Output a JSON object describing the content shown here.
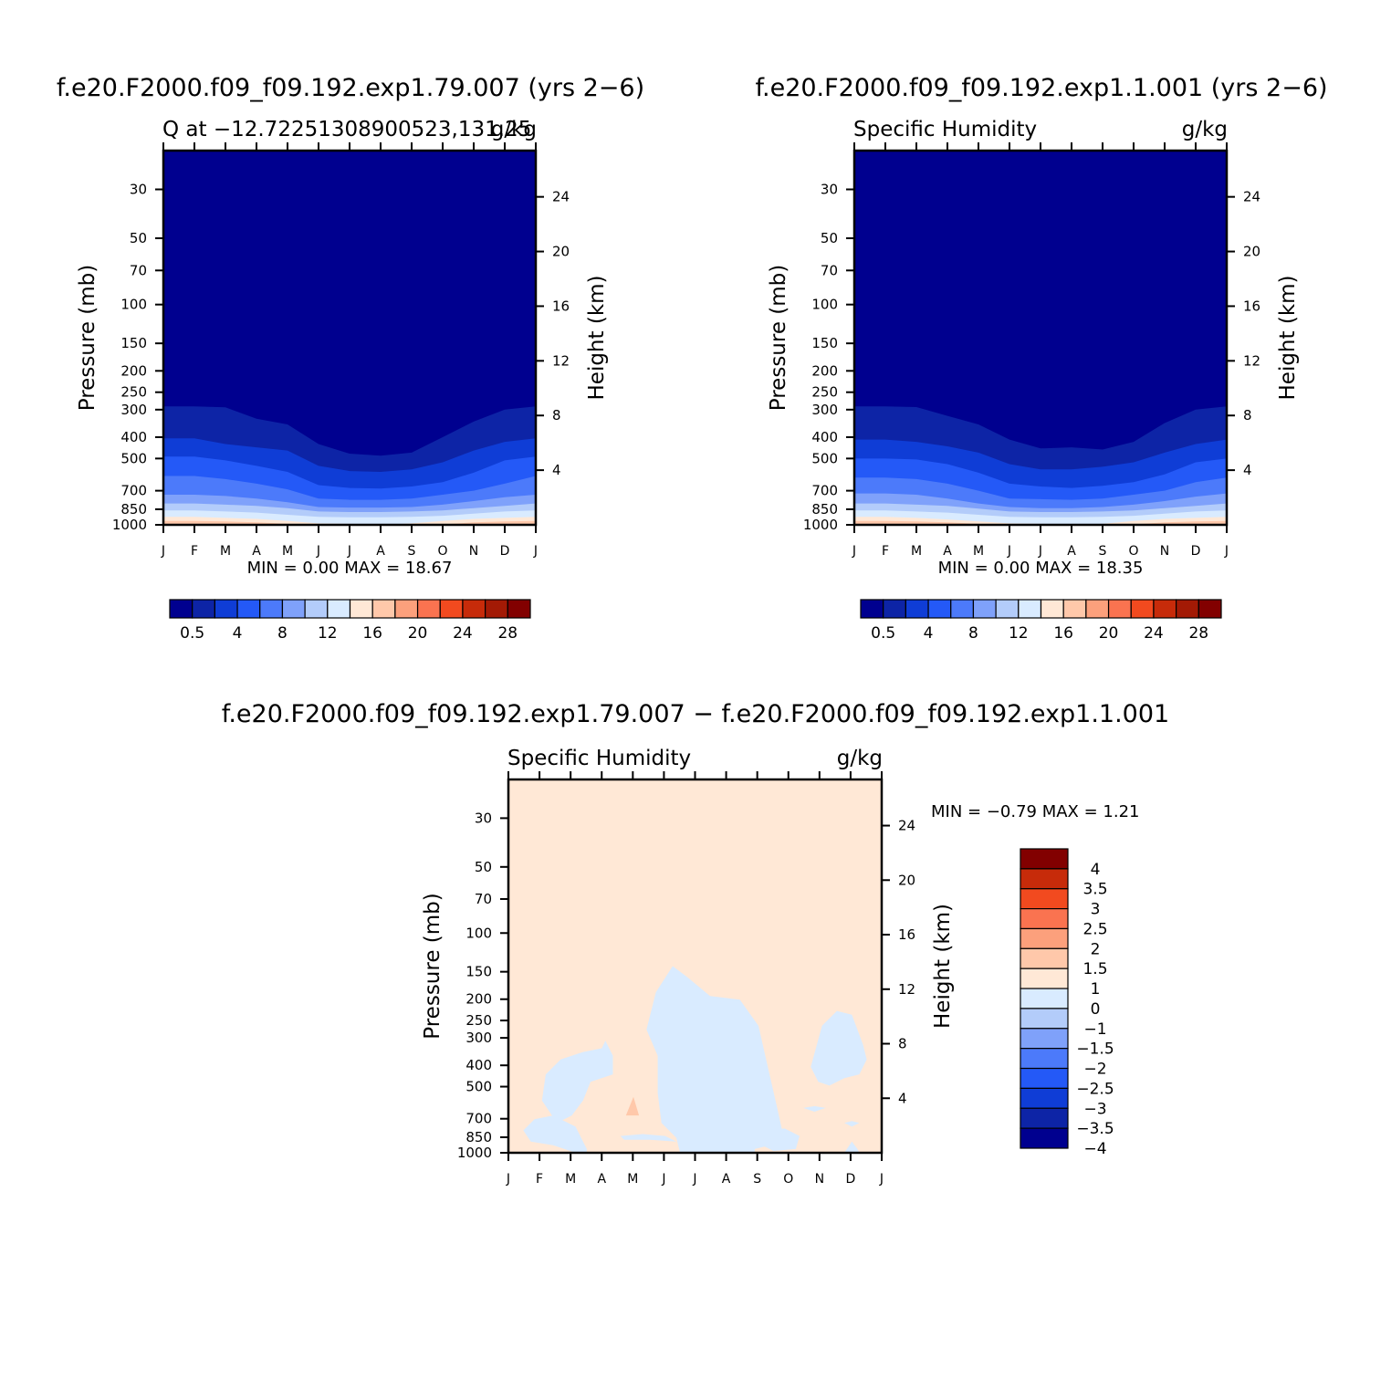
{
  "panels": [
    {
      "id": "ctrl",
      "title": "f.e20.F2000.f09_f09.192.exp1.79.007 (yrs 2−6)",
      "left_label": "Q at −12.72251308900523,131.25",
      "right_label": "g/kg",
      "minmax": "MIN =    0.00  MAX =   18.67"
    },
    {
      "id": "test",
      "title": "f.e20.F2000.f09_f09.192.exp1.1.001 (yrs 2−6)",
      "left_label": "Specific Humidity",
      "right_label": "g/kg",
      "minmax": "MIN =    0.00  MAX =   18.35"
    },
    {
      "id": "diff",
      "title": "f.e20.F2000.f09_f09.192.exp1.79.007 − f.e20.F2000.f09_f09.192.exp1.1.001",
      "left_label": "Specific Humidity",
      "right_label": "g/kg",
      "minmax": "MIN =   −0.79  MAX =    1.21"
    }
  ],
  "chart_data": [
    {
      "type": "heatmap",
      "title": "f.e20.F2000.f09_f09.192.exp1.79.007 (yrs 2−6)",
      "x_categories": [
        "J",
        "F",
        "M",
        "A",
        "M",
        "J",
        "J",
        "A",
        "S",
        "O",
        "N",
        "D",
        "J"
      ],
      "y_ticks": [
        "30",
        "50",
        "70",
        "100",
        "150",
        "200",
        "250",
        "300",
        "400",
        "500",
        "700",
        "850",
        "1000"
      ],
      "ylabel": "Pressure (mb)",
      "y2_ticks": [
        "24",
        "20",
        "16",
        "12",
        "8",
        "4"
      ],
      "y2label": "Height (km)",
      "units": "g/kg",
      "min": 0.0,
      "max": 18.67,
      "contour_levels_labels": [
        "0.5",
        "4",
        "8",
        "12",
        "16",
        "20",
        "24",
        "28"
      ],
      "colors": [
        "#00008F",
        "#0D24A6",
        "#0F3DD6",
        "#2459F7",
        "#4C7AFA",
        "#7FA1FA",
        "#B3CCFA",
        "#D9EBFF",
        "#FFE8D6",
        "#FFC8AA",
        "#FCA07C",
        "#FA7350",
        "#F24A1F",
        "#C72B0A",
        "#A31A05",
        "#820000"
      ],
      "boundaries_level1_hPa": [
        290,
        290,
        293,
        330,
        350,
        430,
        475,
        485,
        470,
        400,
        340,
        300,
        290
      ],
      "boundaries_level2_hPa": [
        405,
        405,
        430,
        445,
        460,
        540,
        570,
        575,
        560,
        520,
        460,
        420,
        405
      ],
      "boundaries_level3_hPa": [
        490,
        490,
        510,
        540,
        575,
        660,
        680,
        685,
        670,
        640,
        580,
        510,
        490
      ],
      "boundaries_level4_hPa": [
        600,
        600,
        620,
        650,
        690,
        760,
        770,
        770,
        760,
        730,
        700,
        650,
        600
      ],
      "boundaries_level5_hPa": [
        730,
        730,
        740,
        760,
        790,
        830,
        835,
        835,
        830,
        810,
        780,
        750,
        730
      ],
      "boundaries_level6_hPa": [
        800,
        800,
        810,
        820,
        840,
        870,
        875,
        875,
        870,
        860,
        840,
        820,
        800
      ],
      "boundaries_level7_hPa": [
        860,
        860,
        870,
        880,
        900,
        920,
        925,
        925,
        920,
        910,
        890,
        870,
        860
      ],
      "boundaries_level8_hPa": [
        920,
        920,
        930,
        940,
        960,
        985,
        990,
        1000,
        985,
        960,
        940,
        930,
        920
      ],
      "boundaries_level9_hPa": [
        960,
        960,
        965,
        975,
        990,
        1000,
        1000,
        1000,
        1000,
        995,
        975,
        965,
        960
      ]
    },
    {
      "type": "heatmap",
      "title": "f.e20.F2000.f09_f09.192.exp1.1.001 (yrs 2−6)",
      "x_categories": [
        "J",
        "F",
        "M",
        "A",
        "M",
        "J",
        "J",
        "A",
        "S",
        "O",
        "N",
        "D",
        "J"
      ],
      "y_ticks": [
        "30",
        "50",
        "70",
        "100",
        "150",
        "200",
        "250",
        "300",
        "400",
        "500",
        "700",
        "850",
        "1000"
      ],
      "ylabel": "Pressure (mb)",
      "y2_ticks": [
        "24",
        "20",
        "16",
        "12",
        "8",
        "4"
      ],
      "y2label": "Height (km)",
      "units": "g/kg",
      "min": 0.0,
      "max": 18.35,
      "contour_levels_labels": [
        "0.5",
        "4",
        "8",
        "12",
        "16",
        "20",
        "24",
        "28"
      ],
      "colors": [
        "#00008F",
        "#0D24A6",
        "#0F3DD6",
        "#2459F7",
        "#4C7AFA",
        "#7FA1FA",
        "#B3CCFA",
        "#D9EBFF",
        "#FFE8D6",
        "#FFC8AA",
        "#FCA07C",
        "#FA7350",
        "#F24A1F",
        "#C72B0A",
        "#A31A05",
        "#820000"
      ],
      "boundaries_level1_hPa": [
        290,
        290,
        292,
        320,
        350,
        410,
        450,
        445,
        455,
        420,
        345,
        300,
        290
      ],
      "boundaries_level2_hPa": [
        410,
        410,
        420,
        440,
        470,
        530,
        560,
        560,
        545,
        520,
        470,
        430,
        410
      ],
      "boundaries_level3_hPa": [
        500,
        500,
        505,
        530,
        580,
        650,
        670,
        680,
        665,
        640,
        590,
        520,
        500
      ],
      "boundaries_level4_hPa": [
        610,
        610,
        620,
        650,
        700,
        760,
        765,
        770,
        760,
        730,
        700,
        640,
        610
      ],
      "boundaries_level5_hPa": [
        720,
        720,
        730,
        760,
        800,
        830,
        840,
        840,
        830,
        810,
        780,
        745,
        720
      ],
      "boundaries_level6_hPa": [
        800,
        800,
        810,
        820,
        845,
        870,
        875,
        875,
        870,
        860,
        840,
        820,
        800
      ],
      "boundaries_level7_hPa": [
        860,
        860,
        870,
        880,
        900,
        920,
        925,
        925,
        920,
        910,
        890,
        870,
        860
      ],
      "boundaries_level8_hPa": [
        920,
        920,
        930,
        945,
        965,
        985,
        990,
        1000,
        990,
        960,
        940,
        930,
        920
      ],
      "boundaries_level9_hPa": [
        960,
        960,
        965,
        975,
        990,
        1000,
        1000,
        1000,
        1000,
        995,
        975,
        965,
        960
      ]
    },
    {
      "type": "heatmap",
      "title": "f.e20.F2000.f09_f09.192.exp1.79.007 − f.e20.F2000.f09_f09.192.exp1.1.001",
      "x_categories": [
        "J",
        "F",
        "M",
        "A",
        "M",
        "J",
        "J",
        "A",
        "S",
        "O",
        "N",
        "D",
        "J"
      ],
      "y_ticks": [
        "30",
        "50",
        "70",
        "100",
        "150",
        "200",
        "250",
        "300",
        "400",
        "500",
        "700",
        "850",
        "1000"
      ],
      "ylabel": "Pressure (mb)",
      "y2_ticks": [
        "24",
        "20",
        "16",
        "12",
        "8",
        "4"
      ],
      "y2label": "Height (km)",
      "units": "g/kg",
      "min": -0.79,
      "max": 1.21,
      "contour_levels_labels": [
        "4",
        "3.5",
        "3",
        "2.5",
        "2",
        "1.5",
        "1",
        "0",
        "−1",
        "−1.5",
        "−2",
        "−2.5",
        "−3",
        "−3.5",
        "−4"
      ],
      "colors": [
        "#820000",
        "#C72B0A",
        "#F24A1F",
        "#FA7350",
        "#FCA07C",
        "#FFC8AA",
        "#FFE8D6",
        "#D9EBFF",
        "#B3CCFA",
        "#7FA1FA",
        "#4C7AFA",
        "#2459F7",
        "#0F3DD6",
        "#0D24A6",
        "#00008F"
      ],
      "background_color": "#FFE8D6",
      "negative_region_color": "#D9EBFF",
      "positive_patch_color": "#FFC8AA"
    }
  ]
}
